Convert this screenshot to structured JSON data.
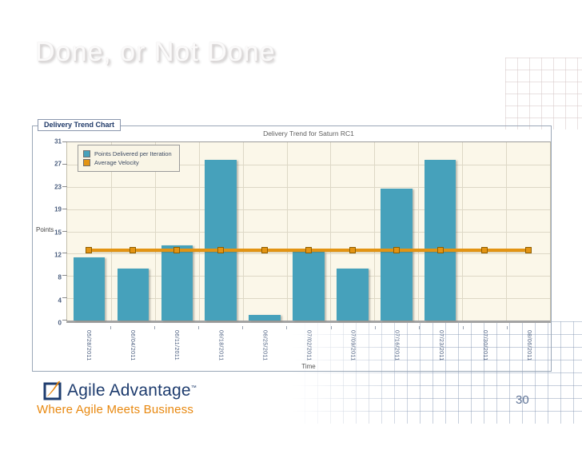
{
  "slide": {
    "title": "Done, or Not Done",
    "page_number": "30"
  },
  "panel": {
    "label": "Delivery Trend Chart"
  },
  "footer": {
    "brand": "Agile Advantage",
    "trademark": "™",
    "tagline": "Where Agile Meets Business"
  },
  "colors": {
    "brand_navy": "#1e3c6e",
    "brand_orange": "#e8880f",
    "plot_background": "#fbf7e9"
  },
  "chart_data": {
    "type": "bar",
    "title": "Delivery Trend for Saturn RC1",
    "xlabel": "Time",
    "ylabel": "Points",
    "ylim": [
      0,
      31
    ],
    "y_tick_labels": [
      "31",
      "27",
      "23",
      "19",
      "15",
      "12",
      "8",
      "4",
      "0"
    ],
    "categories": [
      "05/28/2011",
      "06/04/2011",
      "06/11/2011",
      "06/18/2011",
      "06/25/2011",
      "07/02/2011",
      "07/09/2011",
      "07/16/2011",
      "07/23/2011",
      "07/30/2011",
      "08/06/2011"
    ],
    "series": [
      {
        "name": "Points Delivered per Iteration",
        "type": "bar",
        "color": "#46a1bb",
        "values": [
          11,
          9,
          13,
          28,
          1,
          12,
          9,
          23,
          28,
          0,
          0
        ]
      },
      {
        "name": "Average Velocity",
        "type": "line",
        "color": "#e39413",
        "value": 12.2
      }
    ],
    "legend_position": "top-left",
    "grid": true
  }
}
